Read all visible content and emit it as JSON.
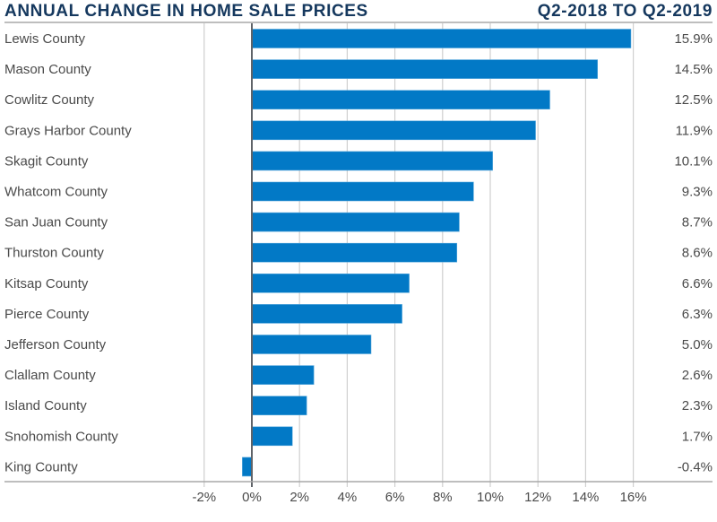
{
  "chart_data": {
    "type": "bar",
    "orientation": "horizontal",
    "title": "ANNUAL CHANGE IN HOME SALE PRICES",
    "subtitle": "Q2-2018 TO Q2-2019",
    "xlabel": "",
    "ylabel": "",
    "categories": [
      "Lewis County",
      "Mason County",
      "Cowlitz County",
      "Grays Harbor County",
      "Skagit County",
      "Whatcom County",
      "San Juan County",
      "Thurston County",
      "Kitsap County",
      "Pierce County",
      "Jefferson County",
      "Clallam County",
      "Island County",
      "Snohomish County",
      "King County"
    ],
    "values": [
      15.9,
      14.5,
      12.5,
      11.9,
      10.1,
      9.3,
      8.7,
      8.6,
      6.6,
      6.3,
      5.0,
      2.6,
      2.3,
      1.7,
      -0.4
    ],
    "value_labels": [
      "15.9%",
      "14.5%",
      "12.5%",
      "11.9%",
      "10.1%",
      "9.3%",
      "8.7%",
      "8.6%",
      "6.6%",
      "6.3%",
      "5.0%",
      "2.6%",
      "2.3%",
      "1.7%",
      "-0.4%"
    ],
    "xlim": [
      -2,
      16
    ],
    "xticks": [
      -2,
      0,
      2,
      4,
      6,
      8,
      10,
      12,
      14,
      16
    ],
    "xtick_labels": [
      "-2%",
      "0%",
      "2%",
      "4%",
      "6%",
      "8%",
      "10%",
      "12%",
      "14%",
      "16%"
    ],
    "grid": true,
    "legend": "none",
    "colors": {
      "bar": "#0279c6",
      "title": "#15385e",
      "text": "#4a4a4a",
      "grid": "#cfcfcf",
      "zero_line": "#5f6368",
      "rule": "#a8a8a8"
    }
  }
}
